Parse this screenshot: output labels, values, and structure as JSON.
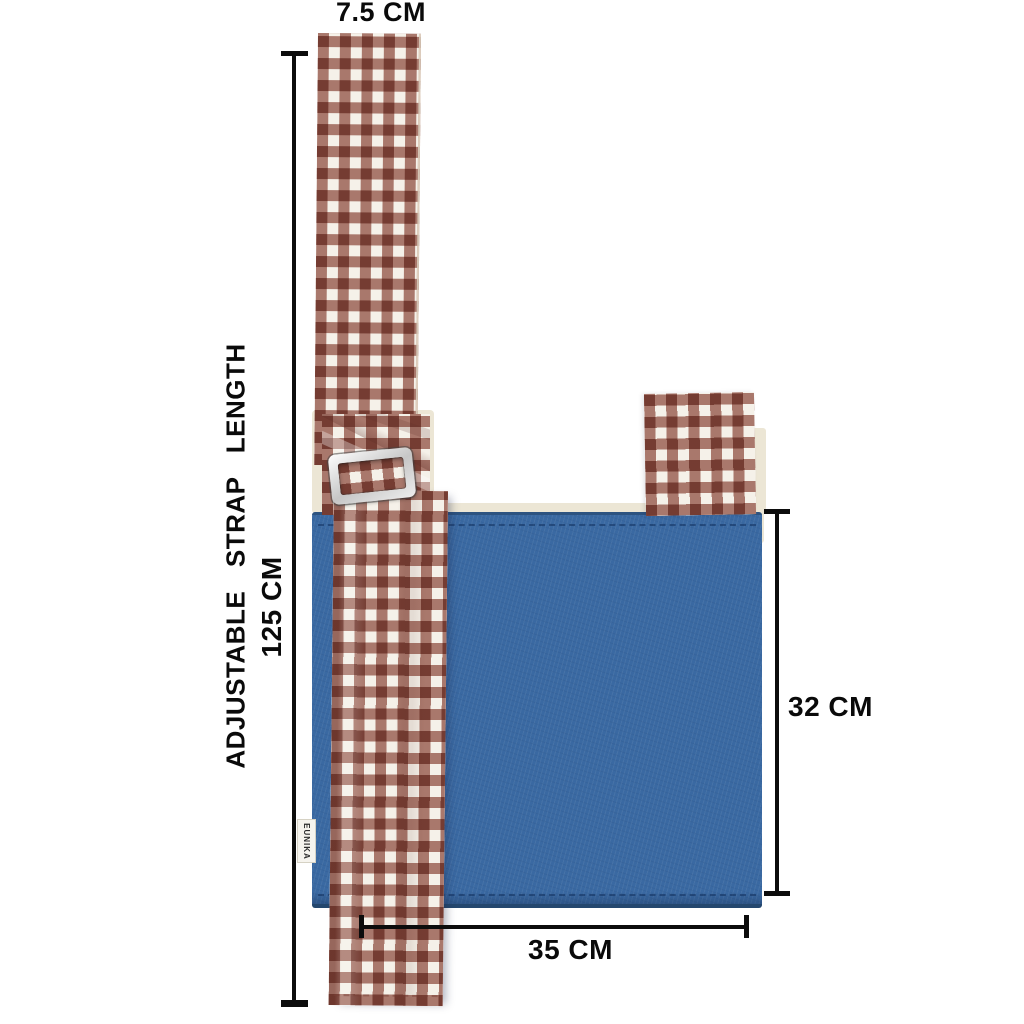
{
  "figure": {
    "subject": "crossbody bag with adjustable gingham strap",
    "view": "front product dimension diagram"
  },
  "annotations": {
    "strap_width_label": "7.5 CM",
    "strap_length_label": "ADJUSTABLE  STRAP  LENGTH",
    "strap_length_value": "125 CM",
    "bag_height_label": "32 CM",
    "bag_width_label": "35 CM"
  },
  "tag": {
    "brand": "EUNIKA"
  },
  "colors": {
    "background": "#ffffff",
    "denim_blue": "#3a69a2",
    "denim_hem": "#24476e",
    "gingham_stripe": "#b07f76",
    "gingham_base": "#f5f1e9",
    "lining_cream": "#ece6d5",
    "buckle_metal": "#c6c6c6",
    "dimension_line": "#0c0c0c"
  }
}
